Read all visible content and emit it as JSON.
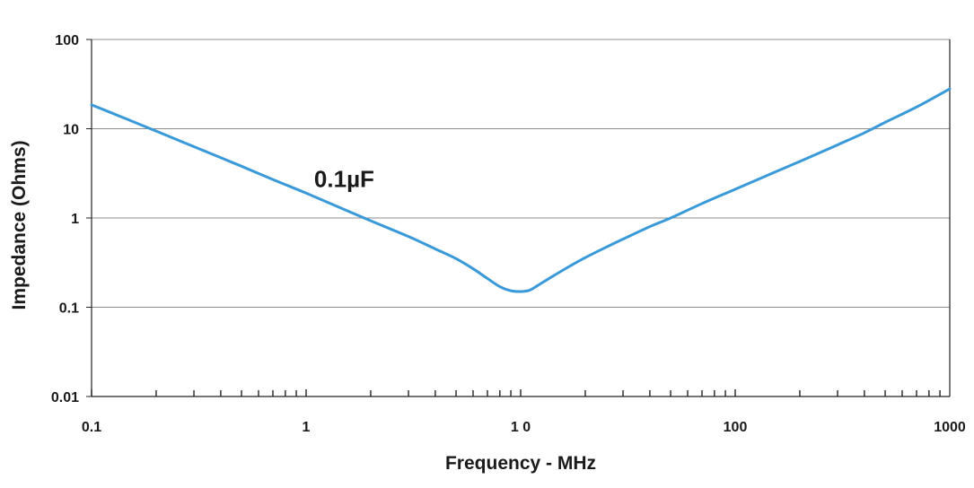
{
  "chart_data": {
    "type": "line",
    "title": "",
    "xlabel": "Frequency - MHz",
    "ylabel": "Impedance (Ohms)",
    "x_scale": "log",
    "y_scale": "log",
    "xlim": [
      0.1,
      1000
    ],
    "ylim": [
      0.01,
      100
    ],
    "x_tick_labels": [
      {
        "value": 0.1,
        "label": "0.1"
      },
      {
        "value": 1,
        "label": "1"
      },
      {
        "value": 10,
        "label": "1 0"
      },
      {
        "value": 100,
        "label": "100"
      },
      {
        "value": 1000,
        "label": "1000"
      }
    ],
    "y_tick_labels": [
      {
        "value": 0.01,
        "label": "0.01"
      },
      {
        "value": 0.1,
        "label": "0.1"
      },
      {
        "value": 1,
        "label": "1"
      },
      {
        "value": 10,
        "label": "10"
      },
      {
        "value": 100,
        "label": "100"
      }
    ],
    "grid": {
      "horizontal": true,
      "vertical": false
    },
    "legend": "none",
    "annotation": {
      "text": "0.1µF",
      "x": 1.2,
      "y": 2.8
    },
    "series": [
      {
        "color": "#3a9ad9",
        "points": [
          [
            0.1,
            18.5
          ],
          [
            0.15,
            12.5
          ],
          [
            0.2,
            9.4
          ],
          [
            0.3,
            6.3
          ],
          [
            0.5,
            3.8
          ],
          [
            0.7,
            2.7
          ],
          [
            1.0,
            1.9
          ],
          [
            1.5,
            1.25
          ],
          [
            2.0,
            0.93
          ],
          [
            3.0,
            0.62
          ],
          [
            4.0,
            0.45
          ],
          [
            5.0,
            0.35
          ],
          [
            6.0,
            0.27
          ],
          [
            7.0,
            0.21
          ],
          [
            8.0,
            0.17
          ],
          [
            9.0,
            0.153
          ],
          [
            10.0,
            0.15
          ],
          [
            11.0,
            0.155
          ],
          [
            12.0,
            0.175
          ],
          [
            14.0,
            0.22
          ],
          [
            17.0,
            0.29
          ],
          [
            20.0,
            0.36
          ],
          [
            25.0,
            0.47
          ],
          [
            30.0,
            0.58
          ],
          [
            40.0,
            0.8
          ],
          [
            50.0,
            1.0
          ],
          [
            70.0,
            1.45
          ],
          [
            100.0,
            2.1
          ],
          [
            150.0,
            3.2
          ],
          [
            200.0,
            4.3
          ],
          [
            300.0,
            6.6
          ],
          [
            400.0,
            9.0
          ],
          [
            500.0,
            11.8
          ],
          [
            700.0,
            17.5
          ],
          [
            1000.0,
            28.0
          ]
        ]
      }
    ],
    "colors": {
      "gridline": "#8c8c8c",
      "axis": "#222222",
      "text": "#1a1a1a"
    }
  }
}
